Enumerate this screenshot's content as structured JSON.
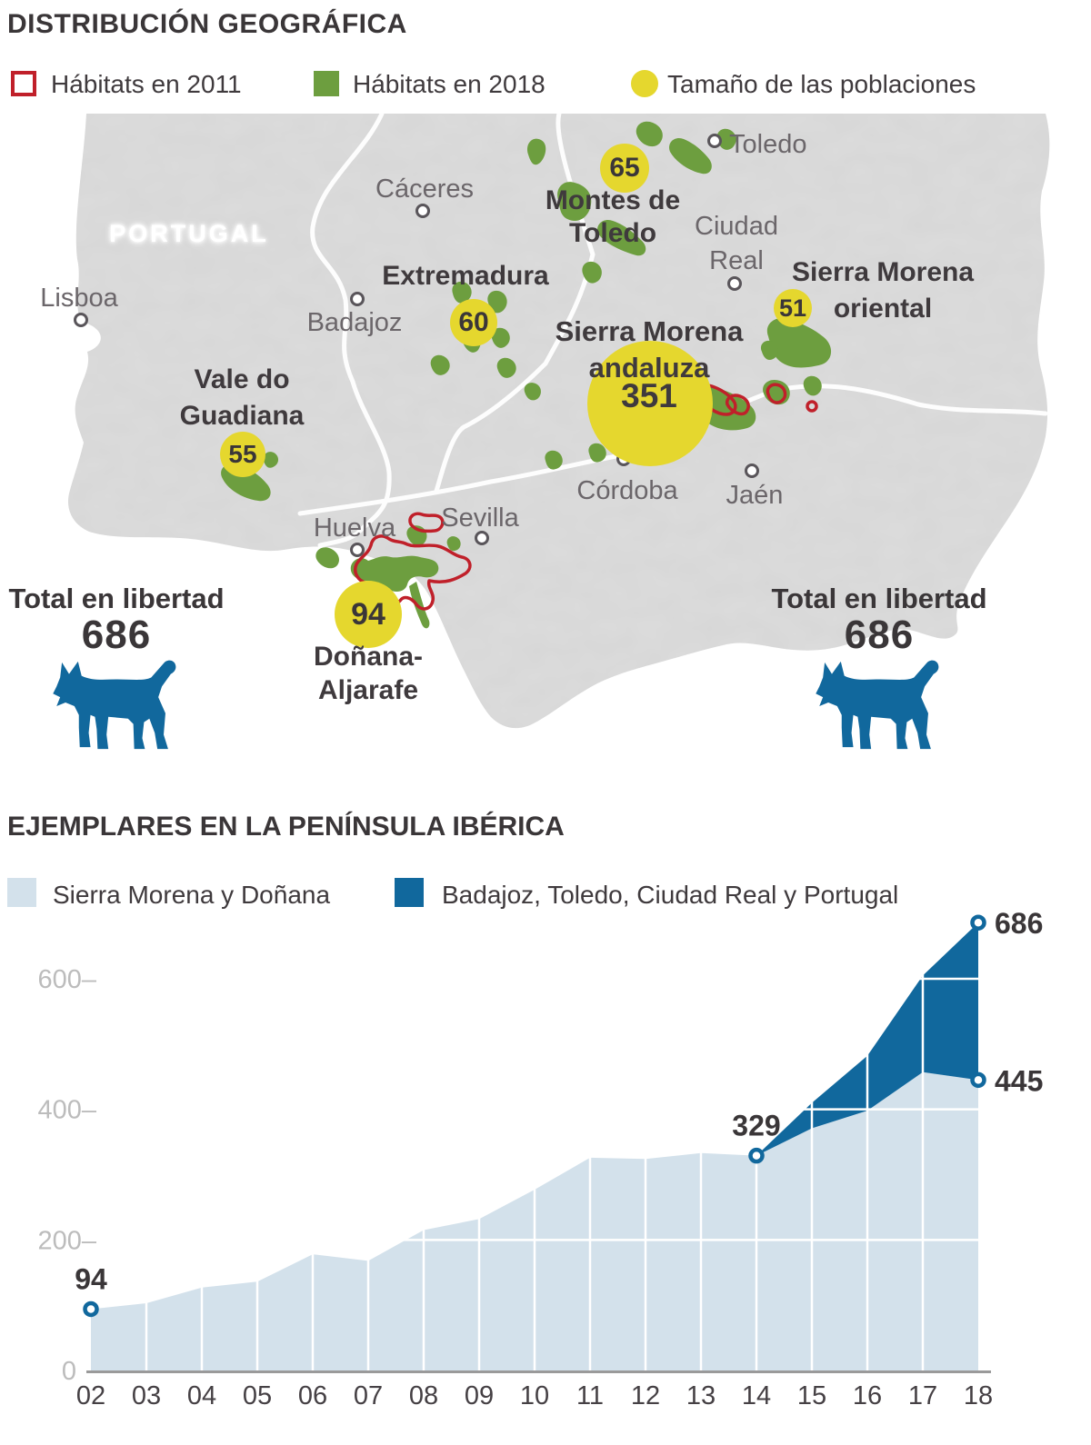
{
  "colors": {
    "accent_blue": "#11689d",
    "light_blue": "#d3e1eb",
    "green": "#6d9e3f",
    "yellow": "#e5d72e",
    "red": "#c0202a",
    "land": "#dcdcdc"
  },
  "map": {
    "title": "DISTRIBUCIÓN GEOGRÁFICA",
    "legend": [
      {
        "label": "Hábitats en 2011",
        "swatch": "outline",
        "color": "#c0202a"
      },
      {
        "label": "Hábitats en 2018",
        "swatch": "fill",
        "color": "#6d9e3f"
      },
      {
        "label": "Tamaño de las poblaciones",
        "swatch": "circle",
        "color": "#e5d72e"
      }
    ],
    "country_label": "PORTUGAL",
    "cities": [
      {
        "name": "Lisboa"
      },
      {
        "name": "Cáceres"
      },
      {
        "name": "Badajoz"
      },
      {
        "name": "Toledo"
      },
      {
        "name": "Ciudad Real"
      },
      {
        "name": "Córdoba"
      },
      {
        "name": "Jaén"
      },
      {
        "name": "Huelva"
      },
      {
        "name": "Sevilla"
      }
    ],
    "populations": [
      {
        "name": "Montes de Toledo",
        "value": "65",
        "name_lines": [
          "Montes de",
          "Toledo"
        ]
      },
      {
        "name": "Extremadura",
        "value": "60",
        "name_lines": [
          "Extremadura"
        ]
      },
      {
        "name": "Sierra Morena oriental",
        "value": "51",
        "name_lines": [
          "Sierra Morena",
          "oriental"
        ]
      },
      {
        "name": "Sierra Morena andaluza",
        "value": "351",
        "name_lines": [
          "Sierra Morena",
          "andaluza"
        ]
      },
      {
        "name": "Vale do Guadiana",
        "value": "55",
        "name_lines": [
          "Vale do",
          "Guadiana"
        ]
      },
      {
        "name": "Doñana-Aljarafe",
        "value": "94",
        "name_lines": [
          "Doñana-",
          "Aljarafe"
        ]
      }
    ],
    "totals": {
      "left": {
        "label": "Total en libertad",
        "value": "686"
      },
      "right": {
        "label": "Total en libertad",
        "value": "686"
      }
    }
  },
  "chart_data": {
    "type": "area",
    "stacked": true,
    "title": "EJEMPLARES EN LA PENÍNSULA IBÉRICA",
    "xlabel": "",
    "ylabel": "",
    "ylim": [
      0,
      700
    ],
    "grid": "white-over-fill",
    "legend_position": "top",
    "years": [
      "02",
      "03",
      "04",
      "05",
      "06",
      "07",
      "08",
      "09",
      "10",
      "11",
      "12",
      "13",
      "14",
      "15",
      "16",
      "17",
      "18"
    ],
    "series": [
      {
        "name": "Sierra Morena y Doñana",
        "color": "#d3e1eb",
        "values": [
          94,
          103,
          127,
          136,
          178,
          168,
          215,
          232,
          277,
          326,
          324,
          333,
          329,
          371,
          398,
          457,
          445
        ]
      },
      {
        "name": "Badajoz, Toledo, Ciudad Real y Portugal",
        "color": "#11689d",
        "values": [
          0,
          0,
          0,
          0,
          0,
          0,
          0,
          0,
          0,
          0,
          0,
          0,
          0,
          39,
          84,
          148,
          241
        ]
      }
    ],
    "totals": [
      94,
      103,
      127,
      136,
      178,
      168,
      215,
      232,
      277,
      326,
      324,
      333,
      329,
      410,
      482,
      605,
      686
    ],
    "yticks": [
      {
        "value": 600,
        "label": "600–"
      },
      {
        "value": 400,
        "label": "400–"
      },
      {
        "value": 200,
        "label": "200–"
      },
      {
        "value": 0,
        "label": "0"
      }
    ],
    "annotations": [
      {
        "year": "02",
        "stack": "series0",
        "value": 94,
        "label": "94",
        "position": "above"
      },
      {
        "year": "14",
        "stack": "series0",
        "value": 329,
        "label": "329",
        "position": "above"
      },
      {
        "year": "18",
        "stack": "total",
        "value": 686,
        "label": "686",
        "position": "right"
      },
      {
        "year": "18",
        "stack": "series0",
        "value": 445,
        "label": "445",
        "position": "right"
      }
    ],
    "gridline_color": "#ffffff",
    "axis_color": "#9a9a9a"
  }
}
